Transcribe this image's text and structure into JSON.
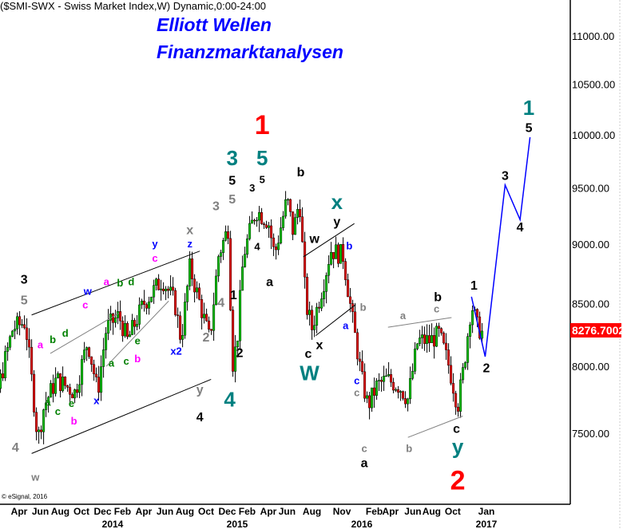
{
  "header": {
    "title": "($SMI-SWX - Swiss Market Index,W) Dynamic,0:00-24:00"
  },
  "branding": {
    "line1": "Elliott Wellen",
    "line2": "Finanzmarktanalysen",
    "color": "#0000ff"
  },
  "copyright": "© eSignal, 2016",
  "current_price": "8276.7002",
  "chart_data": {
    "type": "candlestick",
    "title": "($SMI-SWX - Swiss Market Index,W) Dynamic,0:00-24:00",
    "y_scale": "log",
    "ylim": [
      6900,
      11500
    ],
    "y_ticks": [
      "11000.00",
      "10500.00",
      "10000.00",
      "9500.00",
      "9000.00",
      "8500.00",
      "8000.00",
      "7500.00"
    ],
    "x_ticks": [
      {
        "label": "Apr",
        "date": 2013.25
      },
      {
        "label": "Jun",
        "date": 2013.42
      },
      {
        "label": "Aug",
        "date": 2013.58
      },
      {
        "label": "Oct",
        "date": 2013.75
      },
      {
        "label": "Dec",
        "date": 2013.92
      },
      {
        "label": "Feb",
        "date": 2014.08
      },
      {
        "label": "Apr",
        "date": 2014.25
      },
      {
        "label": "Jun",
        "date": 2014.42
      },
      {
        "label": "Aug",
        "date": 2014.58
      },
      {
        "label": "Oct",
        "date": 2014.75
      },
      {
        "label": "Dec",
        "date": 2014.92
      },
      {
        "label": "Feb",
        "date": 2015.08
      },
      {
        "label": "Apr",
        "date": 2015.25
      },
      {
        "label": "Jun",
        "date": 2015.4
      },
      {
        "label": "Aug",
        "date": 2015.6
      },
      {
        "label": "Nov",
        "date": 2015.84
      },
      {
        "label": "Feb",
        "date": 2016.1
      },
      {
        "label": "Apr",
        "date": 2016.23
      },
      {
        "label": "Jun",
        "date": 2016.41
      },
      {
        "label": "Aug",
        "date": 2016.56
      },
      {
        "label": "Oct",
        "date": 2016.73
      },
      {
        "label": "Jan",
        "date": 2017.0
      }
    ],
    "year_labels": [
      {
        "label": "2014",
        "date": 2014.0
      },
      {
        "label": "2015",
        "date": 2015.0
      },
      {
        "label": "2016",
        "date": 2016.0
      },
      {
        "label": "2017",
        "date": 2017.0
      }
    ],
    "price_path": [
      [
        2012.85,
        7950
      ],
      [
        2012.95,
        8100
      ],
      [
        2013.05,
        7700
      ],
      [
        2013.2,
        8300
      ],
      [
        2013.3,
        8350
      ],
      [
        2013.4,
        7450
      ],
      [
        2013.45,
        7700
      ],
      [
        2013.55,
        7900
      ],
      [
        2013.7,
        7800
      ],
      [
        2013.8,
        8200
      ],
      [
        2013.88,
        7800
      ],
      [
        2013.95,
        8300
      ],
      [
        2014.05,
        8400
      ],
      [
        2014.12,
        8200
      ],
      [
        2014.25,
        8500
      ],
      [
        2014.4,
        8700
      ],
      [
        2014.5,
        8500
      ],
      [
        2014.55,
        8200
      ],
      [
        2014.62,
        8800
      ],
      [
        2014.7,
        8500
      ],
      [
        2014.78,
        8200
      ],
      [
        2014.85,
        8900
      ],
      [
        2014.93,
        9150
      ],
      [
        2014.96,
        8000
      ],
      [
        2015.0,
        8200
      ],
      [
        2015.05,
        8900
      ],
      [
        2015.15,
        9300
      ],
      [
        2015.25,
        9200
      ],
      [
        2015.3,
        8900
      ],
      [
        2015.4,
        9400
      ],
      [
        2015.45,
        9100
      ],
      [
        2015.5,
        9400
      ],
      [
        2015.55,
        8500
      ],
      [
        2015.6,
        8300
      ],
      [
        2015.7,
        8700
      ],
      [
        2015.75,
        8950
      ],
      [
        2015.85,
        8900
      ],
      [
        2015.92,
        8400
      ],
      [
        2016.0,
        7900
      ],
      [
        2016.05,
        7700
      ],
      [
        2016.12,
        7850
      ],
      [
        2016.2,
        7900
      ],
      [
        2016.3,
        7850
      ],
      [
        2016.37,
        7750
      ],
      [
        2016.45,
        8200
      ],
      [
        2016.55,
        8200
      ],
      [
        2016.62,
        8250
      ],
      [
        2016.7,
        8000
      ],
      [
        2016.77,
        7700
      ],
      [
        2016.82,
        8000
      ],
      [
        2016.88,
        8500
      ],
      [
        2016.93,
        8300
      ],
      [
        2016.97,
        8276.7
      ]
    ],
    "projection": {
      "color": "#0000ff",
      "points": [
        [
          2016.88,
          8555
        ],
        [
          2016.99,
          8075
        ],
        [
          2017.15,
          9528
        ],
        [
          2017.27,
          9215
        ],
        [
          2017.35,
          9977
        ]
      ]
    },
    "trend_lines": [
      {
        "color": "#000000",
        "from": [
          2013.35,
          8406
        ],
        "to": [
          2014.7,
          8940
        ]
      },
      {
        "color": "#000000",
        "from": [
          2013.35,
          7355
        ],
        "to": [
          2014.79,
          7900
        ]
      },
      {
        "color": "#808080",
        "from": [
          2013.5,
          8100
        ],
        "to": [
          2014.05,
          8420
        ]
      },
      {
        "color": "#808080",
        "from": [
          2013.95,
          8000
        ],
        "to": [
          2014.45,
          8520
        ]
      },
      {
        "color": "#000000",
        "from": [
          2015.53,
          8890
        ],
        "to": [
          2015.94,
          9180
        ]
      },
      {
        "color": "#000000",
        "from": [
          2015.63,
          8240
        ],
        "to": [
          2015.95,
          8490
        ]
      },
      {
        "color": "#808080",
        "from": [
          2016.21,
          8307
        ],
        "to": [
          2016.72,
          8385
        ]
      },
      {
        "color": "#808080",
        "from": [
          2016.37,
          7470
        ],
        "to": [
          2016.81,
          7625
        ]
      }
    ],
    "wave_labels": [
      {
        "t": "3",
        "c": "#000000",
        "s": "m",
        "d": 2013.29,
        "p": 8700
      },
      {
        "t": "5",
        "c": "#808080",
        "s": "m",
        "d": 2013.29,
        "p": 8530
      },
      {
        "t": "3",
        "c": "#808080",
        "s": "m",
        "d": 2012.97,
        "p": 8245
      },
      {
        "t": "5",
        "c": "#0000ff",
        "s": "m",
        "d": 2012.97,
        "p": 8090
      },
      {
        "t": "4",
        "c": "#0000ff",
        "s": "m",
        "d": 2012.9,
        "p": 7370
      },
      {
        "t": "4",
        "c": "#808080",
        "s": "m",
        "d": 2013.22,
        "p": 7400
      },
      {
        "t": "w",
        "c": "#808080",
        "s": "s",
        "d": 2013.38,
        "p": 7190
      },
      {
        "t": "a",
        "c": "#ff00ff",
        "s": "s",
        "d": 2013.42,
        "p": 8170
      },
      {
        "t": "b",
        "c": "#008000",
        "s": "s",
        "d": 2013.52,
        "p": 8210
      },
      {
        "t": "d",
        "c": "#008000",
        "s": "s",
        "d": 2013.62,
        "p": 8260
      },
      {
        "t": "a",
        "c": "#008000",
        "s": "s",
        "d": 2013.48,
        "p": 7730
      },
      {
        "t": "c",
        "c": "#008000",
        "s": "s",
        "d": 2013.56,
        "p": 7660
      },
      {
        "t": "e",
        "c": "#008000",
        "s": "s",
        "d": 2013.67,
        "p": 7720
      },
      {
        "t": "b",
        "c": "#ff00ff",
        "s": "s",
        "d": 2013.69,
        "p": 7590
      },
      {
        "t": "w",
        "c": "#0000ff",
        "s": "s",
        "d": 2013.8,
        "p": 8600
      },
      {
        "t": "c",
        "c": "#ff00ff",
        "s": "s",
        "d": 2013.78,
        "p": 8490
      },
      {
        "t": "a",
        "c": "#ff00ff",
        "s": "s",
        "d": 2013.95,
        "p": 8680
      },
      {
        "t": "b",
        "c": "#008000",
        "s": "s",
        "d": 2014.06,
        "p": 8670
      },
      {
        "t": "d",
        "c": "#008000",
        "s": "s",
        "d": 2014.15,
        "p": 8680
      },
      {
        "t": "x",
        "c": "#0000ff",
        "s": "s",
        "d": 2013.87,
        "p": 7740
      },
      {
        "t": "a",
        "c": "#008000",
        "s": "s",
        "d": 2013.99,
        "p": 8025
      },
      {
        "t": "c",
        "c": "#008000",
        "s": "s",
        "d": 2014.11,
        "p": 8040
      },
      {
        "t": "e",
        "c": "#008000",
        "s": "s",
        "d": 2014.2,
        "p": 8200
      },
      {
        "t": "b",
        "c": "#ff00ff",
        "s": "s",
        "d": 2014.2,
        "p": 8060
      },
      {
        "t": "c",
        "c": "#ff00ff",
        "s": "s",
        "d": 2014.34,
        "p": 8880
      },
      {
        "t": "y",
        "c": "#0000ff",
        "s": "s",
        "d": 2014.34,
        "p": 9005
      },
      {
        "t": "z",
        "c": "#0000ff",
        "s": "s",
        "d": 2014.62,
        "p": 9005
      },
      {
        "t": "x",
        "c": "#808080",
        "s": "m",
        "d": 2014.62,
        "p": 9125
      },
      {
        "t": "x2",
        "c": "#0000ff",
        "s": "s",
        "d": 2014.51,
        "p": 8120
      },
      {
        "t": "2",
        "c": "#808080",
        "s": "m",
        "d": 2014.75,
        "p": 8230
      },
      {
        "t": "y",
        "c": "#808080",
        "s": "m",
        "d": 2014.7,
        "p": 7825
      },
      {
        "t": "4",
        "c": "#000000",
        "s": "m",
        "d": 2014.7,
        "p": 7620
      },
      {
        "t": "3",
        "c": "#808080",
        "s": "m",
        "d": 2014.83,
        "p": 9340
      },
      {
        "t": "4",
        "c": "#808080",
        "s": "m",
        "d": 2014.87,
        "p": 8510
      },
      {
        "t": "1",
        "c": "#000000",
        "s": "m",
        "d": 2014.97,
        "p": 8570
      },
      {
        "t": "2",
        "c": "#000000",
        "s": "m",
        "d": 2015.02,
        "p": 8105
      },
      {
        "t": "4",
        "c": "#008080",
        "s": "l",
        "d": 2014.94,
        "p": 7750
      },
      {
        "t": "3",
        "c": "#008080",
        "s": "l",
        "d": 2014.96,
        "p": 9780
      },
      {
        "t": "5",
        "c": "#000000",
        "s": "m",
        "d": 2014.96,
        "p": 9570
      },
      {
        "t": "5",
        "c": "#808080",
        "s": "m",
        "d": 2014.96,
        "p": 9400
      },
      {
        "t": "5",
        "c": "#008080",
        "s": "l",
        "d": 2015.2,
        "p": 9780
      },
      {
        "t": "1",
        "c": "#ff0000",
        "s": "xl",
        "d": 2015.2,
        "p": 10100
      },
      {
        "t": "5",
        "c": "#000000",
        "s": "s",
        "d": 2015.2,
        "p": 9580
      },
      {
        "t": "3",
        "c": "#000000",
        "s": "s",
        "d": 2015.12,
        "p": 9500
      },
      {
        "t": "4",
        "c": "#000000",
        "s": "s",
        "d": 2015.16,
        "p": 8980
      },
      {
        "t": "a",
        "c": "#000000",
        "s": "m",
        "d": 2015.26,
        "p": 8680
      },
      {
        "t": "b",
        "c": "#000000",
        "s": "m",
        "d": 2015.51,
        "p": 9650
      },
      {
        "t": "x",
        "c": "#008080",
        "s": "l",
        "d": 2015.8,
        "p": 9375
      },
      {
        "t": "y",
        "c": "#000000",
        "s": "m",
        "d": 2015.8,
        "p": 9200
      },
      {
        "t": "w",
        "c": "#000000",
        "s": "m",
        "d": 2015.62,
        "p": 9050
      },
      {
        "t": "b",
        "c": "#0000ff",
        "s": "s",
        "d": 2015.9,
        "p": 8985
      },
      {
        "t": "b",
        "c": "#808080",
        "s": "s",
        "d": 2016.01,
        "p": 8470
      },
      {
        "t": "a",
        "c": "#0000ff",
        "s": "s",
        "d": 2015.87,
        "p": 8320
      },
      {
        "t": "c",
        "c": "#0000ff",
        "s": "s",
        "d": 2015.96,
        "p": 7890
      },
      {
        "t": "c",
        "c": "#808080",
        "s": "s",
        "d": 2015.96,
        "p": 7800
      },
      {
        "t": "c",
        "c": "#000000",
        "s": "m",
        "d": 2015.57,
        "p": 8100
      },
      {
        "t": "x",
        "c": "#000000",
        "s": "m",
        "d": 2015.66,
        "p": 8170
      },
      {
        "t": "W",
        "c": "#008080",
        "s": "l",
        "d": 2015.58,
        "p": 7950
      },
      {
        "t": "a",
        "c": "#000000",
        "s": "m",
        "d": 2016.02,
        "p": 7290
      },
      {
        "t": "c",
        "c": "#808080",
        "s": "s",
        "d": 2016.02,
        "p": 7390
      },
      {
        "t": "a",
        "c": "#808080",
        "s": "s",
        "d": 2016.33,
        "p": 8400
      },
      {
        "t": "c",
        "c": "#808080",
        "s": "s",
        "d": 2016.6,
        "p": 8455
      },
      {
        "t": "b",
        "c": "#000000",
        "s": "m",
        "d": 2016.61,
        "p": 8555
      },
      {
        "t": "b",
        "c": "#808080",
        "s": "s",
        "d": 2016.38,
        "p": 7390
      },
      {
        "t": "c",
        "c": "#000000",
        "s": "m",
        "d": 2016.76,
        "p": 7535
      },
      {
        "t": "y",
        "c": "#008080",
        "s": "l",
        "d": 2016.77,
        "p": 7405
      },
      {
        "t": "2",
        "c": "#ff0000",
        "s": "xl",
        "d": 2016.77,
        "p": 7170
      },
      {
        "t": "1",
        "c": "#000000",
        "s": "m",
        "d": 2016.9,
        "p": 8650
      },
      {
        "t": "2",
        "c": "#000000",
        "s": "m",
        "d": 2017.0,
        "p": 7990
      },
      {
        "t": "3",
        "c": "#000000",
        "s": "m",
        "d": 2017.15,
        "p": 9615
      },
      {
        "t": "4",
        "c": "#000000",
        "s": "m",
        "d": 2017.27,
        "p": 9150
      },
      {
        "t": "1",
        "c": "#008080",
        "s": "l",
        "d": 2017.34,
        "p": 10265
      },
      {
        "t": "5",
        "c": "#000000",
        "s": "m",
        "d": 2017.34,
        "p": 10070
      }
    ],
    "colors": {
      "up": "#00c000",
      "down": "#e00000",
      "wick": "#000000",
      "price_tag": "#ff0000"
    }
  }
}
